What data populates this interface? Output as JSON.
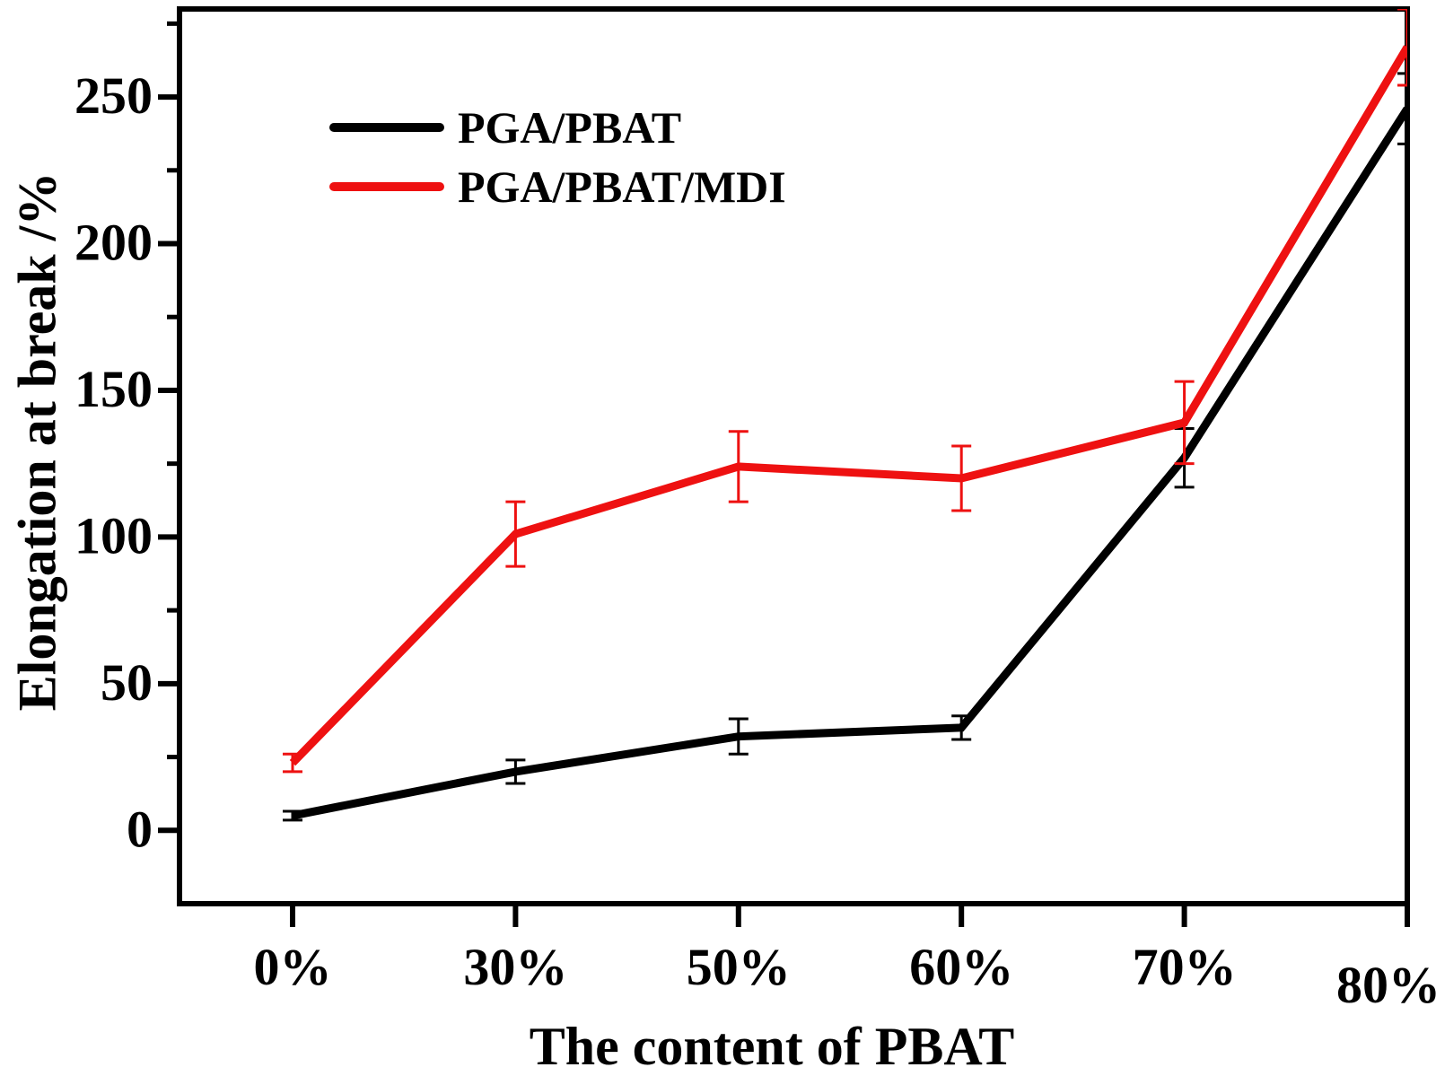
{
  "chart_data": {
    "type": "line",
    "title": "",
    "xlabel": "The content of PBAT",
    "ylabel": "Elongation at break /%",
    "categories": [
      "0%",
      "30%",
      "50%",
      "60%",
      "70%",
      "80%"
    ],
    "y_ticks": [
      0,
      50,
      100,
      150,
      200,
      250
    ],
    "y_minor_ticks": [
      25,
      75,
      125,
      175,
      225,
      275
    ],
    "ylim": [
      -25,
      280
    ],
    "grid": false,
    "legend_position": "upper-left",
    "error_bars": true,
    "colors": {
      "axis": "#000000",
      "background": "#ffffff"
    },
    "series": [
      {
        "name": "PGA/PBAT",
        "color": "#000000",
        "values": [
          5,
          20,
          32,
          35,
          127,
          246
        ],
        "errors": [
          1.5,
          4,
          6,
          4,
          10,
          12
        ]
      },
      {
        "name": "PGA/PBAT/MDI",
        "color": "#ee1111",
        "values": [
          23,
          101,
          124,
          120,
          139,
          267
        ],
        "errors": [
          3,
          11,
          12,
          11,
          14,
          13
        ]
      }
    ]
  }
}
